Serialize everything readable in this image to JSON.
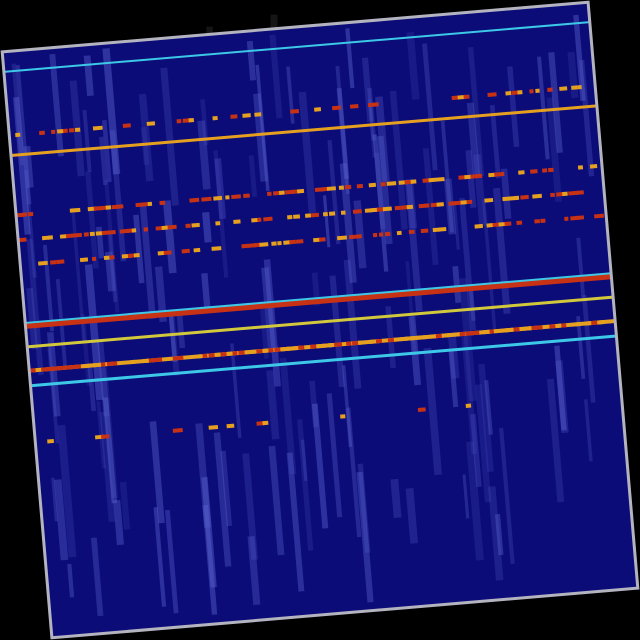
{
  "image": {
    "kind": "rotated spectrogram heatmap",
    "colors": {
      "background": "#000000",
      "panel": "#0c0c78",
      "border": "#b4b4c0",
      "cyan": "#3cc8e6",
      "orange": "#e6a020",
      "red": "#c83214",
      "yellow": "#d2c83c",
      "streak": "#5a64d2"
    }
  }
}
